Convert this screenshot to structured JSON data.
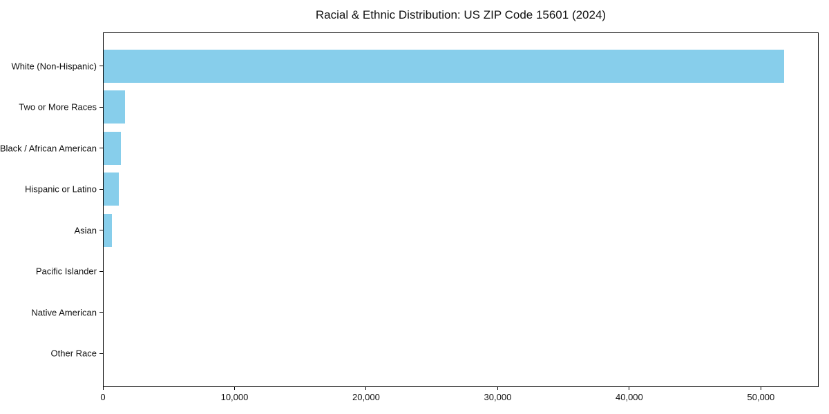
{
  "chart_data": {
    "type": "bar",
    "orientation": "horizontal",
    "title": "Racial & Ethnic Distribution: US ZIP Code 15601 (2024)",
    "categories": [
      "White (Non-Hispanic)",
      "Two or More Races",
      "Black / African American",
      "Hispanic or Latino",
      "Asian",
      "Pacific Islander",
      "Native American",
      "Other Race"
    ],
    "values": [
      51800,
      1640,
      1310,
      1170,
      610,
      0,
      0,
      0
    ],
    "bar_color": "#87CEEB",
    "xlabel": "",
    "ylabel": "",
    "xlim": [
      0,
      54390
    ],
    "xticks": {
      "values": [
        0,
        10000,
        20000,
        30000,
        40000,
        50000
      ],
      "labels": [
        "0",
        "10,000",
        "20,000",
        "30,000",
        "40,000",
        "50,000"
      ]
    },
    "grid": false,
    "legend": null
  }
}
